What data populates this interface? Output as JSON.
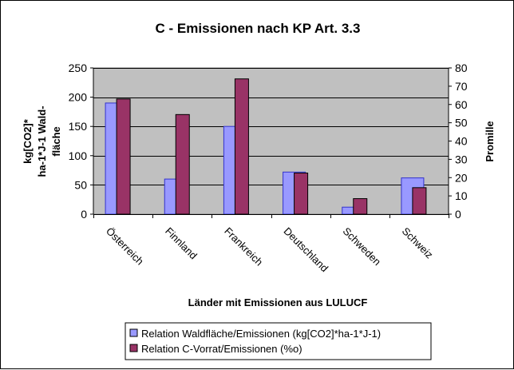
{
  "chart_data": {
    "type": "bar",
    "title": "C - Emissionen nach KP Art. 3.3",
    "xlabel": "Länder mit Emissionen aus LULUCF",
    "ylabel_left_lines": [
      "kg[CO2]*",
      "ha-1*J-1 Wald-",
      "fläche"
    ],
    "ylabel_right": "Promille",
    "categories": [
      "Österreich",
      "Finnland",
      "Frankreich",
      "Deutschland",
      "Schweden",
      "Schweiz"
    ],
    "ylim_left": [
      0,
      250
    ],
    "yticks_left": [
      "0",
      "50",
      "100",
      "150",
      "200",
      "250"
    ],
    "ylim_right": [
      0,
      80
    ],
    "yticks_right": [
      "0",
      "10",
      "20",
      "30",
      "40",
      "50",
      "60",
      "70",
      "80"
    ],
    "grid": true,
    "legend_position": "bottom",
    "series": [
      {
        "name": "Relation Waldfläche/Emissionen (kg[CO2]*ha-1*J-1)",
        "axis": "left",
        "color": "#9999ff",
        "values": [
          190,
          60,
          150,
          72,
          12,
          62
        ]
      },
      {
        "name": "Relation C-Vorrat/Emissionen (%o)",
        "axis": "right",
        "color": "#993366",
        "values": [
          63,
          54.5,
          74,
          22.5,
          8.5,
          14.5
        ]
      }
    ]
  }
}
